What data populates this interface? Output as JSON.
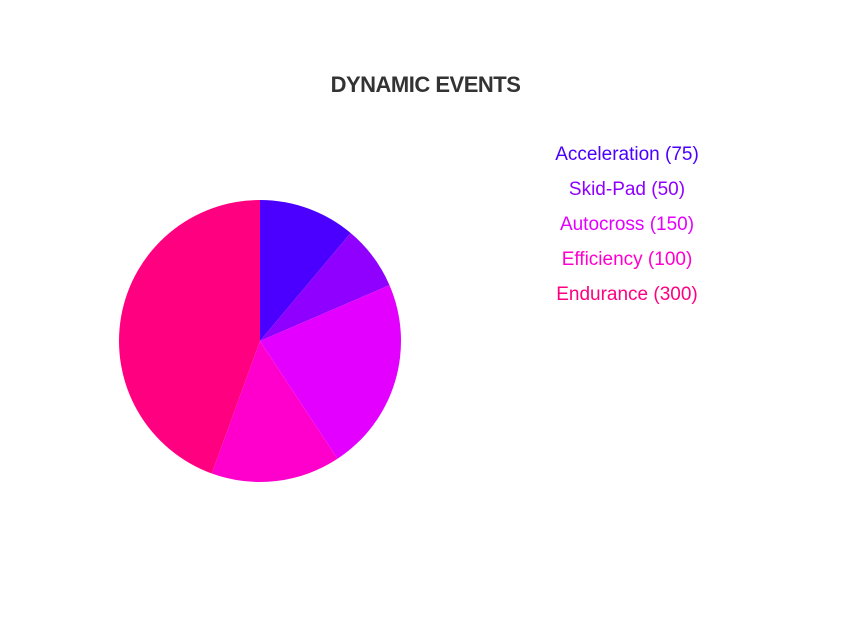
{
  "chart_data": {
    "type": "pie",
    "title": "DYNAMIC EVENTS",
    "categories": [
      "Acceleration",
      "Skid-Pad",
      "Autocross",
      "Efficiency",
      "Endurance"
    ],
    "values": [
      75,
      50,
      150,
      100,
      300
    ],
    "colors": [
      "#4b00ff",
      "#8f00ff",
      "#e400ff",
      "#ff00cc",
      "#ff0080"
    ],
    "legend": {
      "placement": "top-right",
      "labels": [
        "Acceleration (75)",
        "Skid-Pad (50)",
        "Autocross (150)",
        "Efficiency (100)",
        "Endurance (300)"
      ]
    }
  }
}
